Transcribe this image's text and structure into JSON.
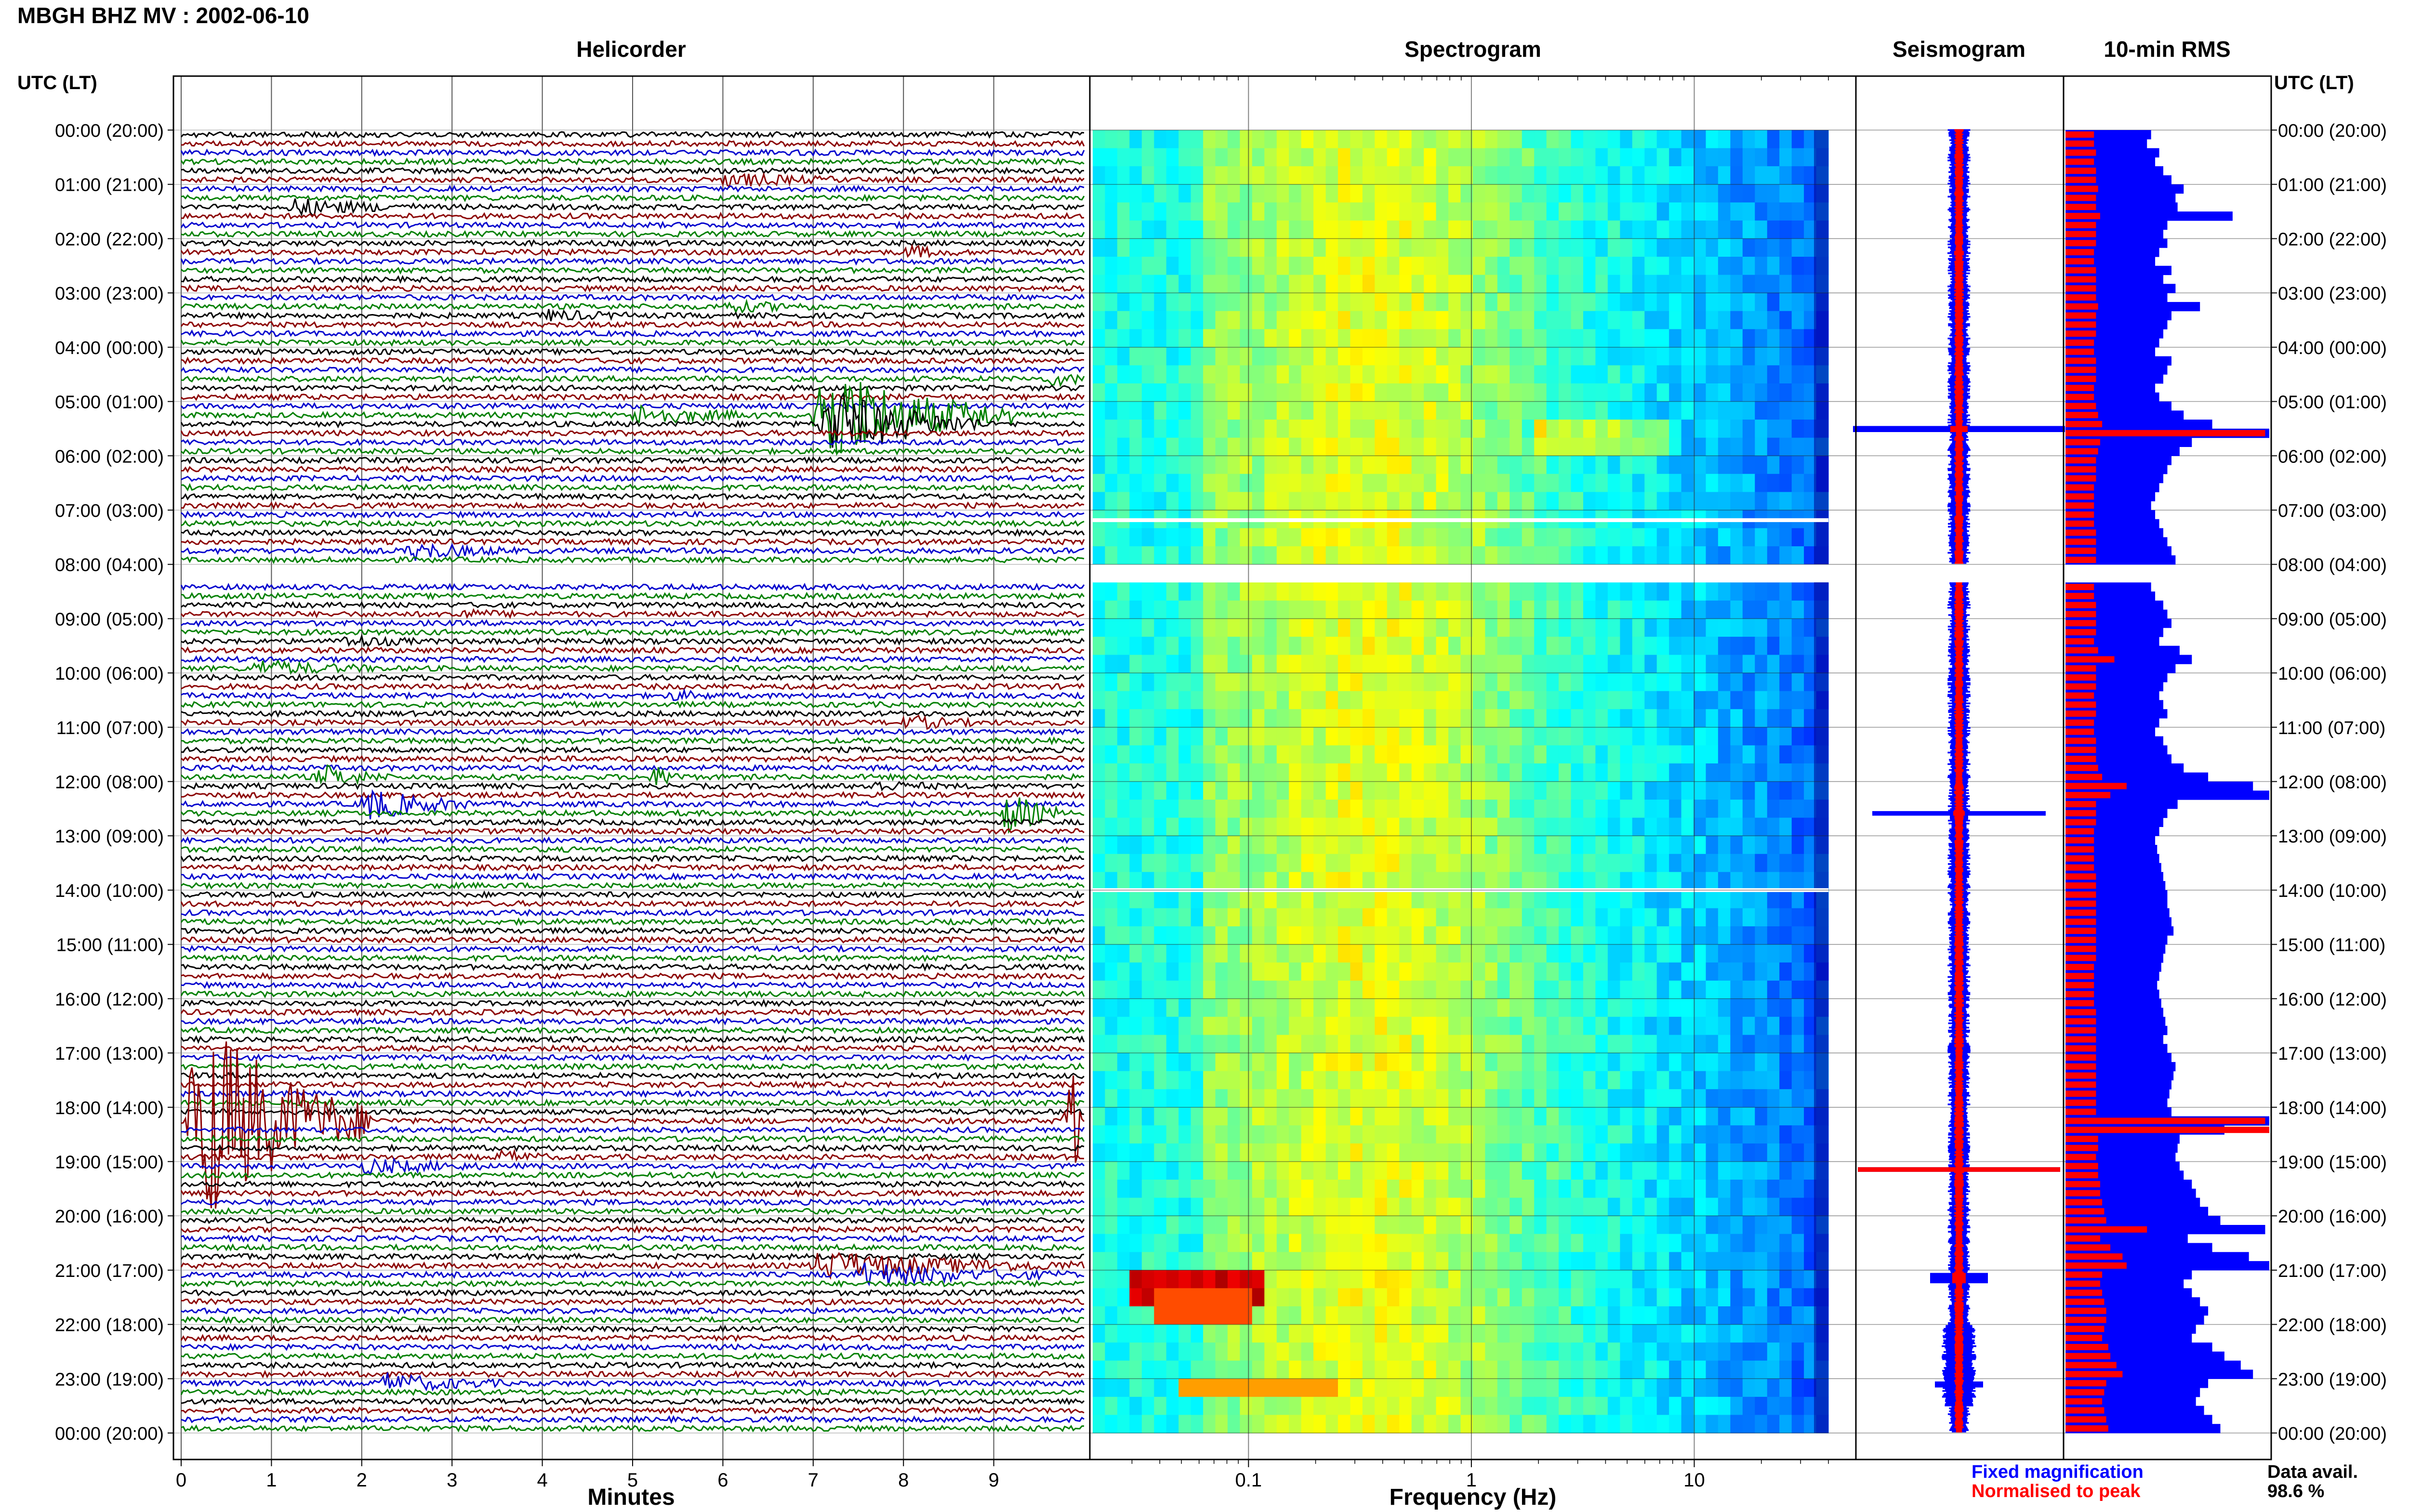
{
  "title": "MBGH BHZ MV : 2002-06-10",
  "timezone_label_left": "UTC (LT)",
  "timezone_label_right": "UTC (LT)",
  "panels": {
    "helicorder": "Helicorder",
    "spectrogram": "Spectrogram",
    "seismogram": "Seismogram",
    "rms": "10-min RMS"
  },
  "hour_labels": [
    "00:00 (20:00)",
    "01:00 (21:00)",
    "02:00 (22:00)",
    "03:00 (23:00)",
    "04:00 (00:00)",
    "05:00 (01:00)",
    "06:00 (02:00)",
    "07:00 (03:00)",
    "08:00 (04:00)",
    "09:00 (05:00)",
    "10:00 (06:00)",
    "11:00 (07:00)",
    "12:00 (08:00)",
    "13:00 (09:00)",
    "14:00 (10:00)",
    "15:00 (11:00)",
    "16:00 (12:00)",
    "17:00 (13:00)",
    "18:00 (14:00)",
    "19:00 (15:00)",
    "20:00 (16:00)",
    "21:00 (17:00)",
    "22:00 (18:00)",
    "23:00 (19:00)",
    "00:00 (20:00)"
  ],
  "helicorder_xaxis": {
    "label": "Minutes",
    "ticks": [
      "0",
      "1",
      "2",
      "3",
      "4",
      "5",
      "6",
      "7",
      "8",
      "9"
    ]
  },
  "spectrogram_xaxis": {
    "label": "Frequency (Hz)",
    "scale": "log",
    "ticks": [
      "0.1",
      "1",
      "10"
    ]
  },
  "legend": {
    "fixed": "Fixed magnification",
    "normalised": "Normalised to peak",
    "fixed_color": "#0000ff",
    "normalised_color": "#ff0000"
  },
  "data_avail": {
    "label": "Data avail.",
    "value": "98.6 %"
  },
  "colors": {
    "trace_cycle": [
      "#000000",
      "#8b0000",
      "#0000cd",
      "#008000"
    ],
    "rms_fixed": "#0000ff",
    "rms_normalised": "#ff0000"
  },
  "chart_data": {
    "type": "heatmap",
    "helicorder": {
      "minutes_per_line": 10,
      "lines": 144,
      "xlim": [
        0,
        10
      ],
      "data_gaps_utc": [
        [
          "08:00",
          "08:20"
        ],
        [
          "14:00",
          "14:00"
        ]
      ],
      "events": [
        {
          "line": 5,
          "minute": 6.0,
          "amp": 0.7,
          "dur": 1.3
        },
        {
          "line": 8,
          "minute": 1.2,
          "amp": 0.9,
          "dur": 1.4
        },
        {
          "line": 13,
          "minute": 8.0,
          "amp": 0.6,
          "dur": 0.6
        },
        {
          "line": 20,
          "minute": 4.0,
          "amp": 0.5,
          "dur": 1.0
        },
        {
          "line": 19,
          "minute": 6.0,
          "amp": 0.5,
          "dur": 1.2
        },
        {
          "line": 27,
          "minute": 9.6,
          "amp": 0.6,
          "dur": 0.6
        },
        {
          "line": 31,
          "minute": 5.0,
          "amp": 1.0,
          "dur": 1.4
        },
        {
          "line": 31,
          "minute": 7.0,
          "amp": 6.5,
          "dur": 2.2
        },
        {
          "line": 32,
          "minute": 7.1,
          "amp": 4.0,
          "dur": 1.8
        },
        {
          "line": 46,
          "minute": 2.5,
          "amp": 0.9,
          "dur": 1.2
        },
        {
          "line": 53,
          "minute": 3.0,
          "amp": 0.4,
          "dur": 0.8
        },
        {
          "line": 56,
          "minute": 1.8,
          "amp": 0.6,
          "dur": 0.8
        },
        {
          "line": 59,
          "minute": 0.8,
          "amp": 0.8,
          "dur": 1.4
        },
        {
          "line": 62,
          "minute": 5.4,
          "amp": 0.4,
          "dur": 0.6
        },
        {
          "line": 65,
          "minute": 8.0,
          "amp": 0.7,
          "dur": 0.8
        },
        {
          "line": 71,
          "minute": 1.5,
          "amp": 1.2,
          "dur": 0.8
        },
        {
          "line": 71,
          "minute": 5.2,
          "amp": 1.0,
          "dur": 0.4
        },
        {
          "line": 72,
          "minute": 7.6,
          "amp": 0.5,
          "dur": 0.8
        },
        {
          "line": 74,
          "minute": 2.0,
          "amp": 1.8,
          "dur": 1.2
        },
        {
          "line": 75,
          "minute": 9.1,
          "amp": 2.5,
          "dur": 0.6
        },
        {
          "line": 109,
          "minute": 0.1,
          "amp": 14.0,
          "dur": 2.0
        },
        {
          "line": 109,
          "minute": 9.8,
          "amp": 6.0,
          "dur": 0.3
        },
        {
          "line": 113,
          "minute": 3.5,
          "amp": 0.6,
          "dur": 0.6
        },
        {
          "line": 114,
          "minute": 2.0,
          "amp": 0.8,
          "dur": 1.4
        },
        {
          "line": 125,
          "minute": 7.0,
          "amp": 1.6,
          "dur": 3.0
        },
        {
          "line": 126,
          "minute": 7.5,
          "amp": 1.2,
          "dur": 2.4
        },
        {
          "line": 138,
          "minute": 2.2,
          "amp": 1.0,
          "dur": 1.4
        }
      ]
    },
    "spectrogram": {
      "frequency_range_hz": [
        0.02,
        40
      ],
      "colormap": "jet",
      "notable_features": [
        {
          "utc": "21:05",
          "freq_hz": [
            0.03,
            0.12
          ],
          "level": "high"
        },
        {
          "utc": "23:00",
          "freq_hz": [
            0.05,
            0.25
          ],
          "level": "elevated"
        }
      ]
    },
    "rms_10min_fixed": [
      0.42,
      0.4,
      0.46,
      0.44,
      0.48,
      0.52,
      0.58,
      0.54,
      0.55,
      0.82,
      0.5,
      0.48,
      0.5,
      0.46,
      0.44,
      0.52,
      0.48,
      0.54,
      0.5,
      0.66,
      0.52,
      0.5,
      0.48,
      0.46,
      0.44,
      0.52,
      0.5,
      0.48,
      0.44,
      0.46,
      0.52,
      0.58,
      0.72,
      1.05,
      0.62,
      0.56,
      0.52,
      0.5,
      0.48,
      0.46,
      0.44,
      0.42,
      0.44,
      0.46,
      0.48,
      0.5,
      0.52,
      0.54,
      0.46,
      0.44,
      0.42,
      0.44,
      0.48,
      0.5,
      0.52,
      0.48,
      0.46,
      0.56,
      0.62,
      0.54,
      0.5,
      0.48,
      0.46,
      0.48,
      0.5,
      0.46,
      0.44,
      0.48,
      0.5,
      0.52,
      0.58,
      0.7,
      0.92,
      1.05,
      0.55,
      0.5,
      0.48,
      0.46,
      0.44,
      0.45,
      0.46,
      0.47,
      0.48,
      0.49,
      0.5,
      0.5,
      0.51,
      0.52,
      0.53,
      0.5,
      0.49,
      0.48,
      0.47,
      0.46,
      0.45,
      0.46,
      0.47,
      0.48,
      0.49,
      0.5,
      0.48,
      0.5,
      0.52,
      0.54,
      0.53,
      0.52,
      0.51,
      0.5,
      0.52,
      1.05,
      0.78,
      0.56,
      0.55,
      0.54,
      0.56,
      0.58,
      0.62,
      0.64,
      0.66,
      0.7,
      0.76,
      0.98,
      0.6,
      0.72,
      0.9,
      1.0,
      0.62,
      0.58,
      0.62,
      0.66,
      0.7,
      0.68,
      0.64,
      0.62,
      0.72,
      0.78,
      0.86,
      0.92,
      0.7,
      0.66,
      0.64,
      0.68,
      0.72,
      0.76
    ],
    "rms_10min_normalised": [
      0.14,
      0.14,
      0.15,
      0.14,
      0.15,
      0.15,
      0.16,
      0.15,
      0.15,
      0.17,
      0.15,
      0.15,
      0.15,
      0.14,
      0.14,
      0.15,
      0.15,
      0.15,
      0.15,
      0.16,
      0.15,
      0.15,
      0.15,
      0.14,
      0.14,
      0.15,
      0.15,
      0.15,
      0.14,
      0.14,
      0.15,
      0.16,
      0.18,
      0.98,
      0.17,
      0.16,
      0.15,
      0.15,
      0.15,
      0.14,
      0.14,
      0.14,
      0.14,
      0.14,
      0.15,
      0.15,
      0.15,
      0.15,
      0.14,
      0.14,
      0.14,
      0.14,
      0.15,
      0.15,
      0.15,
      0.15,
      0.14,
      0.16,
      0.24,
      0.15,
      0.15,
      0.15,
      0.14,
      0.15,
      0.15,
      0.14,
      0.14,
      0.15,
      0.15,
      0.15,
      0.16,
      0.18,
      0.3,
      0.22,
      0.15,
      0.15,
      0.15,
      0.14,
      0.14,
      0.14,
      0.14,
      0.14,
      0.15,
      0.15,
      0.15,
      0.15,
      0.15,
      0.15,
      0.15,
      0.15,
      0.15,
      0.15,
      0.14,
      0.14,
      0.14,
      0.14,
      0.14,
      0.15,
      0.15,
      0.15,
      0.15,
      0.15,
      0.15,
      0.15,
      0.15,
      0.15,
      0.15,
      0.15,
      0.15,
      0.98,
      1.0,
      0.16,
      0.16,
      0.15,
      0.16,
      0.16,
      0.17,
      0.17,
      0.18,
      0.19,
      0.2,
      0.4,
      0.17,
      0.22,
      0.28,
      0.3,
      0.18,
      0.17,
      0.18,
      0.19,
      0.2,
      0.2,
      0.19,
      0.18,
      0.21,
      0.22,
      0.25,
      0.28,
      0.2,
      0.19,
      0.18,
      0.19,
      0.2,
      0.21
    ],
    "rms_gaps": [
      48,
      49
    ]
  }
}
